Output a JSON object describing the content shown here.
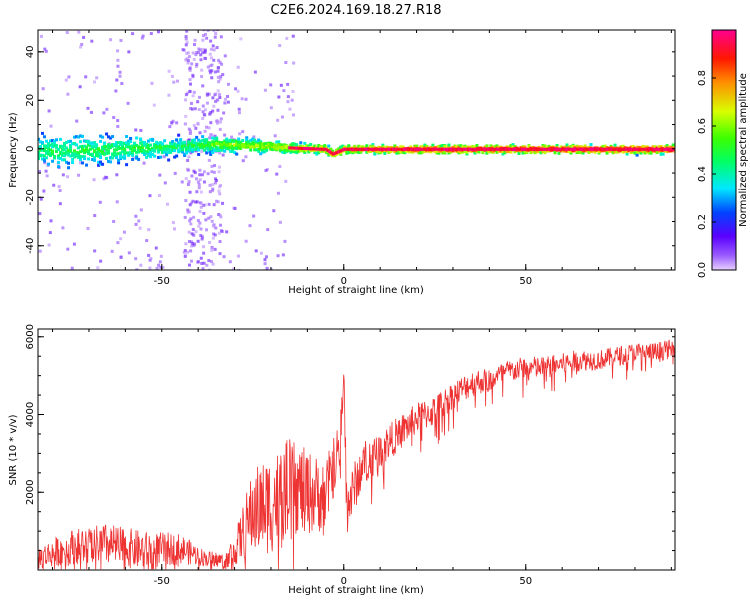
{
  "figure_title": "C2E6.2024.169.18.27.R18",
  "chart_data": [
    {
      "type": "heatmap",
      "title": "",
      "xlabel": "Height of straight line (km)",
      "ylabel": "Frequency (Hz)",
      "xlim": [
        -84,
        91
      ],
      "ylim": [
        -50,
        49
      ],
      "xticks": [
        -50,
        0,
        50
      ],
      "yticks": [
        -40,
        -20,
        0,
        20,
        40
      ],
      "colorbar": {
        "label": "Normalized spectral amplitude",
        "range": [
          0,
          1
        ],
        "ticks": [
          0.0,
          0.2,
          0.4,
          0.6,
          0.8
        ],
        "colormap": [
          "#e8d0ff",
          "#5a00ff",
          "#0044ff",
          "#00e8ff",
          "#00ff66",
          "#3cff00",
          "#d8ff00",
          "#ff9000",
          "#ff1800",
          "#ff0090"
        ]
      },
      "center_line": {
        "x": [
          -84,
          -60,
          -45,
          -35,
          -25,
          -14,
          -5,
          -3,
          0,
          91
        ],
        "y": [
          -1,
          0,
          1,
          2,
          1.5,
          0.5,
          0,
          -2,
          0,
          0
        ]
      },
      "amplitude_profile": {
        "x": [
          -84,
          -70,
          -55,
          -45,
          -35,
          -15,
          0,
          20,
          50,
          91
        ],
        "value": [
          0.45,
          0.5,
          0.5,
          0.45,
          0.6,
          0.7,
          0.85,
          0.95,
          0.97,
          1.0
        ]
      },
      "line_halfwidth_hz": {
        "x": [
          -84,
          -60,
          -40,
          -15,
          0,
          91
        ],
        "value": [
          6,
          5,
          3,
          2,
          1.5,
          1.5
        ]
      },
      "grid": false,
      "legend": "none"
    },
    {
      "type": "line",
      "title": "",
      "xlabel": "Height of straight line (km)",
      "ylabel": "SNR (10 * v/v)",
      "xlim": [
        -84,
        91
      ],
      "ylim": [
        0,
        6200
      ],
      "xticks": [
        -50,
        0,
        50
      ],
      "yticks": [
        2000,
        4000,
        6000
      ],
      "color": "#ee3333",
      "series": [
        {
          "x": [
            -84,
            -75,
            -65,
            -55,
            -45,
            -38,
            -33,
            -30,
            -25,
            -20,
            -15,
            -10,
            -5,
            -1,
            0,
            1,
            5,
            10,
            15,
            20,
            25,
            30,
            35,
            40,
            45,
            50,
            55,
            60,
            65,
            70,
            75,
            80,
            85,
            91
          ],
          "values": [
            300,
            600,
            650,
            500,
            550,
            300,
            250,
            500,
            1500,
            1700,
            2200,
            2000,
            1900,
            3300,
            4900,
            1600,
            2700,
            3100,
            3500,
            3900,
            4100,
            4500,
            4800,
            4900,
            5100,
            5200,
            5200,
            5300,
            5400,
            5400,
            5500,
            5600,
            5600,
            5700
          ],
          "noise": [
            300,
            450,
            550,
            500,
            400,
            200,
            200,
            400,
            1100,
            1300,
            1200,
            1100,
            900,
            700,
            500,
            700,
            600,
            500,
            450,
            400,
            400,
            350,
            350,
            300,
            300,
            300,
            300,
            280,
            280,
            260,
            260,
            250,
            250,
            250
          ]
        }
      ],
      "grid": false,
      "legend": "none"
    }
  ]
}
